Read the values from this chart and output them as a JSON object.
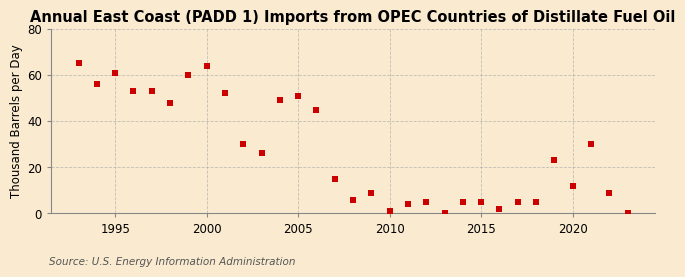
{
  "title": "Annual East Coast (PADD 1) Imports from OPEC Countries of Distillate Fuel Oil",
  "ylabel": "Thousand Barrels per Day",
  "source": "Source: U.S. Energy Information Administration",
  "background_color": "#faebd0",
  "plot_bg_color": "#faebd0",
  "marker_color": "#cc0000",
  "years": [
    1993,
    1994,
    1995,
    1996,
    1997,
    1998,
    1999,
    2000,
    2001,
    2002,
    2003,
    2004,
    2005,
    2006,
    2007,
    2008,
    2009,
    2010,
    2011,
    2012,
    2013,
    2014,
    2015,
    2016,
    2017,
    2018,
    2019,
    2020,
    2021,
    2022,
    2023
  ],
  "values": [
    65,
    56,
    61,
    53,
    53,
    48,
    60,
    64,
    52,
    30,
    26,
    49,
    51,
    45,
    15,
    6,
    9,
    1,
    4,
    5,
    0,
    5,
    5,
    2,
    5,
    5,
    23,
    12,
    30,
    9,
    0
  ],
  "ylim": [
    0,
    80
  ],
  "yticks": [
    0,
    20,
    40,
    60,
    80
  ],
  "xlim": [
    1991.5,
    2024.5
  ],
  "xtick_positions": [
    1995,
    2000,
    2005,
    2010,
    2015,
    2020
  ],
  "grid_color": "#aaaaaa",
  "grid_style": "--",
  "title_fontsize": 10.5,
  "label_fontsize": 8.5,
  "source_fontsize": 7.5
}
